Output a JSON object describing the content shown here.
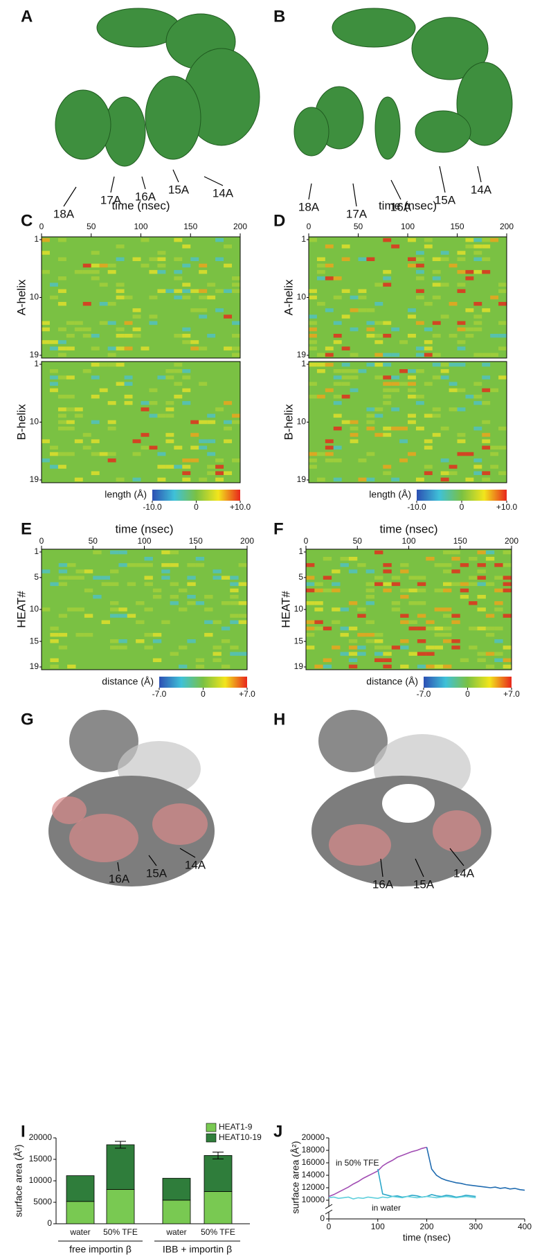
{
  "panel_labels": [
    "A",
    "B",
    "C",
    "D",
    "E",
    "F",
    "G",
    "H",
    "I",
    "J"
  ],
  "structure_labels": {
    "A": [
      "18A",
      "17A",
      "16A",
      "15A",
      "14A"
    ],
    "B": [
      "18A",
      "17A",
      "16A",
      "15A",
      "14A"
    ],
    "G": [
      "16A",
      "15A",
      "14A"
    ],
    "H": [
      "16A",
      "15A",
      "14A"
    ]
  },
  "heatmaps": [
    {
      "xlabel": "time (nsec)",
      "xlim": [
        0,
        200
      ],
      "xticks": [
        0,
        50,
        100,
        150,
        200
      ],
      "rows": [
        {
          "ylabel": "A-helix",
          "ylim": [
            1,
            19
          ],
          "yticks": [
            1,
            10,
            19
          ]
        },
        {
          "ylabel": "B-helix",
          "ylim": [
            1,
            19
          ],
          "yticks": [
            1,
            10,
            19
          ]
        }
      ],
      "colorbar": {
        "label": "length (Å)",
        "lim": [
          -10,
          10
        ],
        "ticks": [
          {
            "value": -10,
            "label": "-10.0"
          },
          0,
          {
            "value": 10,
            "label": "+10.0"
          }
        ]
      }
    },
    {
      "xlabel": "time (nsec)",
      "xlim": [
        0,
        200
      ],
      "xticks": [
        0,
        50,
        100,
        150,
        200
      ],
      "rows": [
        {
          "ylabel": "A-helix",
          "ylim": [
            1,
            19
          ],
          "yticks": [
            1,
            10,
            19
          ]
        },
        {
          "ylabel": "B-helix",
          "ylim": [
            1,
            19
          ],
          "yticks": [
            1,
            10,
            19
          ]
        }
      ],
      "colorbar": {
        "label": "length (Å)",
        "lim": [
          -10,
          10
        ],
        "ticks": [
          {
            "value": -10,
            "label": "-10.0"
          },
          0,
          {
            "value": 10,
            "label": "+10.0"
          }
        ]
      }
    },
    {
      "xlabel": "time (nsec)",
      "xlim": [
        0,
        200
      ],
      "xticks": [
        0,
        50,
        100,
        150,
        200
      ],
      "rows": [
        {
          "ylabel": "HEAT#",
          "ylim": [
            1,
            19
          ],
          "yticks": [
            1,
            5,
            10,
            15,
            19
          ]
        }
      ],
      "colorbar": {
        "label": "distance (Å)",
        "lim": [
          -7,
          7
        ],
        "ticks": [
          {
            "value": -7,
            "label": "-7.0"
          },
          0,
          {
            "value": 7,
            "label": "+7.0"
          }
        ]
      }
    },
    {
      "xlabel": "time (nsec)",
      "xlim": [
        0,
        200
      ],
      "xticks": [
        0,
        50,
        100,
        150,
        200
      ],
      "rows": [
        {
          "ylabel": "HEAT#",
          "ylim": [
            1,
            19
          ],
          "yticks": [
            1,
            5,
            10,
            15,
            19
          ]
        }
      ],
      "colorbar": {
        "label": "distance (Å)",
        "lim": [
          -7,
          7
        ],
        "ticks": [
          {
            "value": -7,
            "label": "-7.0"
          },
          0,
          {
            "value": 7,
            "label": "+7.0"
          }
        ]
      }
    }
  ],
  "chart_data": [
    {
      "type": "bar",
      "ylabel": "surface area (Å²)",
      "categories": [
        "water",
        "50% TFE",
        "water",
        "50% TFE"
      ],
      "group_labels": [
        "free importin β",
        "IBB + importin β"
      ],
      "series": [
        {
          "name": "HEAT1-9",
          "color": "#79c952",
          "values": [
            5200,
            8000,
            5500,
            7500
          ]
        },
        {
          "name": "HEAT10-19",
          "color": "#2f7d3b",
          "values": [
            6000,
            10400,
            5100,
            8400
          ],
          "errors": [
            null,
            800,
            null,
            800
          ]
        }
      ],
      "ylim": [
        0,
        20000
      ],
      "yticks": [
        0,
        5000,
        10000,
        15000,
        20000
      ],
      "legend": "top-right"
    },
    {
      "type": "line",
      "xlabel": "time (nsec)",
      "ylabel": "surface area (Å²)",
      "annotations": [
        "in 50% TFE",
        "in water"
      ],
      "xlim": [
        0,
        400
      ],
      "xticks": [
        0,
        100,
        200,
        300,
        400
      ],
      "ylim": [
        0,
        20000
      ],
      "yticks": [
        0,
        10000,
        12000,
        14000,
        16000,
        18000,
        20000
      ],
      "axis_break": [
        0,
        10000
      ],
      "series": [
        {
          "color": "#a14db3",
          "x": [
            0,
            10,
            20,
            30,
            40,
            50,
            60,
            70,
            80,
            90,
            100,
            110,
            120,
            130,
            140,
            150,
            160,
            170,
            180,
            190,
            200
          ],
          "values": [
            10600,
            10900,
            11300,
            11700,
            12100,
            12600,
            13000,
            13500,
            13900,
            14300,
            14700,
            15500,
            16000,
            16400,
            16900,
            17200,
            17500,
            17800,
            18000,
            18300,
            18500
          ]
        },
        {
          "color": "#2aa7c9",
          "x": [
            100,
            110,
            120,
            130,
            140,
            150,
            160,
            170,
            180,
            190,
            200,
            210,
            220,
            230,
            240,
            250,
            260,
            270,
            280,
            290,
            300
          ],
          "values": [
            15000,
            11000,
            10800,
            10600,
            10700,
            10500,
            10600,
            10800,
            10700,
            10500,
            10600,
            10900,
            10700,
            10600,
            10800,
            10700,
            10500,
            10600,
            10800,
            10700,
            10600
          ]
        },
        {
          "color": "#1f6bb0",
          "x": [
            200,
            210,
            220,
            230,
            240,
            250,
            260,
            270,
            280,
            290,
            300,
            310,
            320,
            330,
            340,
            350,
            360,
            370,
            380,
            390,
            400
          ],
          "values": [
            18500,
            15000,
            14000,
            13500,
            13200,
            13000,
            12800,
            12700,
            12500,
            12400,
            12300,
            12200,
            12100,
            12000,
            12100,
            11900,
            12000,
            11800,
            11900,
            11700,
            11600
          ]
        },
        {
          "color": "#5fcfdc",
          "x": [
            0,
            10,
            20,
            30,
            40,
            50,
            60,
            70,
            80,
            90,
            100,
            110,
            120,
            130,
            140,
            150,
            160,
            170,
            180,
            190,
            200,
            210,
            220,
            230,
            240,
            250,
            260,
            270,
            280,
            290,
            300
          ],
          "values": [
            10400,
            10500,
            10300,
            10400,
            10500,
            10200,
            10400,
            10300,
            10500,
            10400,
            10300,
            10500,
            10400,
            10600,
            10500,
            10400,
            10600,
            10500,
            10400,
            10500,
            10600,
            10500,
            10400,
            10500,
            10600,
            10500,
            10400,
            10500,
            10600,
            10500,
            10400
          ]
        }
      ]
    }
  ]
}
